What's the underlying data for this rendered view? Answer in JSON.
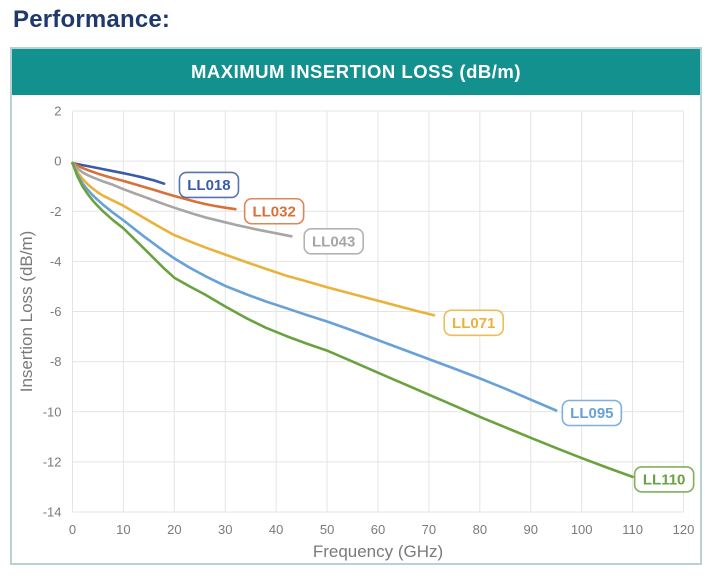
{
  "page": {
    "title": "Performance:"
  },
  "colors": {
    "page_title": "#1e3a6d",
    "banner_bg": "#12918f",
    "banner_text": "#ffffff",
    "card_border": "#b7d2d2",
    "grid": "#e4e4e4",
    "tick_text": "#7a7a7a",
    "axis_title_text": "#7a7a7a",
    "label_box_fill": "#ffffff"
  },
  "chart_data": {
    "type": "line",
    "title": "MAXIMUM INSERTION LOSS (dB/m)",
    "xlabel": "Frequency (GHz)",
    "ylabel": "Insertion Loss (dB/m)",
    "xlim": [
      0,
      120
    ],
    "ylim": [
      -14,
      2
    ],
    "xticks": [
      0,
      10,
      20,
      30,
      40,
      50,
      60,
      70,
      80,
      90,
      100,
      110,
      120
    ],
    "yticks": [
      2,
      0,
      -2,
      -4,
      -6,
      -8,
      -10,
      -12,
      -14
    ],
    "grid": true,
    "legend": "inline-labels",
    "series": [
      {
        "name": "LL018",
        "color": "#3a5ba9",
        "label_pos": [
          26.8,
          -0.95
        ],
        "points": [
          [
            0,
            -0.08
          ],
          [
            1,
            -0.12
          ],
          [
            2,
            -0.16
          ],
          [
            3,
            -0.2
          ],
          [
            4,
            -0.24
          ],
          [
            5,
            -0.28
          ],
          [
            6,
            -0.32
          ],
          [
            8,
            -0.4
          ],
          [
            10,
            -0.48
          ],
          [
            12,
            -0.57
          ],
          [
            14,
            -0.66
          ],
          [
            16,
            -0.77
          ],
          [
            18,
            -0.9
          ]
        ]
      },
      {
        "name": "LL032",
        "color": "#d9703a",
        "label_pos": [
          39.6,
          -2.0
        ],
        "points": [
          [
            0,
            -0.08
          ],
          [
            1,
            -0.18
          ],
          [
            2,
            -0.28
          ],
          [
            3,
            -0.36
          ],
          [
            4,
            -0.43
          ],
          [
            5,
            -0.5
          ],
          [
            6,
            -0.56
          ],
          [
            8,
            -0.68
          ],
          [
            10,
            -0.79
          ],
          [
            12,
            -0.91
          ],
          [
            14,
            -1.03
          ],
          [
            16,
            -1.15
          ],
          [
            18,
            -1.27
          ],
          [
            20,
            -1.39
          ],
          [
            22,
            -1.5
          ],
          [
            24,
            -1.61
          ],
          [
            26,
            -1.71
          ],
          [
            28,
            -1.79
          ],
          [
            30,
            -1.86
          ],
          [
            32,
            -1.92
          ]
        ]
      },
      {
        "name": "LL043",
        "color": "#a6a6a6",
        "label_pos": [
          51.3,
          -3.2
        ],
        "points": [
          [
            0,
            -0.08
          ],
          [
            1,
            -0.3
          ],
          [
            2,
            -0.45
          ],
          [
            3,
            -0.56
          ],
          [
            4,
            -0.65
          ],
          [
            5,
            -0.73
          ],
          [
            6,
            -0.81
          ],
          [
            8,
            -0.95
          ],
          [
            10,
            -1.12
          ],
          [
            12,
            -1.27
          ],
          [
            14,
            -1.42
          ],
          [
            16,
            -1.57
          ],
          [
            18,
            -1.72
          ],
          [
            20,
            -1.86
          ],
          [
            22,
            -1.99
          ],
          [
            24,
            -2.12
          ],
          [
            26,
            -2.24
          ],
          [
            28,
            -2.34
          ],
          [
            30,
            -2.44
          ],
          [
            32,
            -2.54
          ],
          [
            34,
            -2.63
          ],
          [
            36,
            -2.72
          ],
          [
            38,
            -2.8
          ],
          [
            40,
            -2.88
          ],
          [
            42,
            -2.96
          ],
          [
            43,
            -3.0
          ]
        ]
      },
      {
        "name": "LL071",
        "color": "#eab23a",
        "label_pos": [
          78.8,
          -6.45
        ],
        "points": [
          [
            0,
            -0.08
          ],
          [
            1,
            -0.45
          ],
          [
            2,
            -0.72
          ],
          [
            3,
            -0.93
          ],
          [
            4,
            -1.1
          ],
          [
            5,
            -1.25
          ],
          [
            6,
            -1.38
          ],
          [
            8,
            -1.58
          ],
          [
            10,
            -1.78
          ],
          [
            12,
            -2.02
          ],
          [
            14,
            -2.26
          ],
          [
            16,
            -2.5
          ],
          [
            18,
            -2.73
          ],
          [
            20,
            -2.95
          ],
          [
            23,
            -3.2
          ],
          [
            26,
            -3.44
          ],
          [
            30,
            -3.73
          ],
          [
            34,
            -4.02
          ],
          [
            38,
            -4.3
          ],
          [
            42,
            -4.57
          ],
          [
            46,
            -4.8
          ],
          [
            50,
            -5.03
          ],
          [
            55,
            -5.3
          ],
          [
            60,
            -5.57
          ],
          [
            65,
            -5.84
          ],
          [
            68,
            -6.0
          ],
          [
            71,
            -6.15
          ]
        ]
      },
      {
        "name": "LL095",
        "color": "#68a1d8",
        "label_pos": [
          102.0,
          -10.05
        ],
        "points": [
          [
            0,
            -0.08
          ],
          [
            1,
            -0.55
          ],
          [
            2,
            -0.9
          ],
          [
            3,
            -1.15
          ],
          [
            4,
            -1.37
          ],
          [
            5,
            -1.56
          ],
          [
            6,
            -1.74
          ],
          [
            8,
            -2.06
          ],
          [
            10,
            -2.36
          ],
          [
            12,
            -2.68
          ],
          [
            14,
            -3.0
          ],
          [
            16,
            -3.3
          ],
          [
            18,
            -3.6
          ],
          [
            20,
            -3.88
          ],
          [
            23,
            -4.25
          ],
          [
            26,
            -4.58
          ],
          [
            30,
            -4.98
          ],
          [
            34,
            -5.3
          ],
          [
            38,
            -5.6
          ],
          [
            42,
            -5.87
          ],
          [
            46,
            -6.14
          ],
          [
            50,
            -6.4
          ],
          [
            55,
            -6.76
          ],
          [
            60,
            -7.14
          ],
          [
            65,
            -7.52
          ],
          [
            70,
            -7.9
          ],
          [
            75,
            -8.28
          ],
          [
            80,
            -8.67
          ],
          [
            85,
            -9.08
          ],
          [
            90,
            -9.52
          ],
          [
            95,
            -9.95
          ]
        ]
      },
      {
        "name": "LL110",
        "color": "#69a23f",
        "label_pos": [
          116.2,
          -12.7
        ],
        "points": [
          [
            0,
            -0.08
          ],
          [
            1,
            -0.62
          ],
          [
            2,
            -1.02
          ],
          [
            3,
            -1.32
          ],
          [
            4,
            -1.58
          ],
          [
            5,
            -1.8
          ],
          [
            6,
            -2.0
          ],
          [
            8,
            -2.36
          ],
          [
            10,
            -2.68
          ],
          [
            12,
            -3.08
          ],
          [
            14,
            -3.48
          ],
          [
            16,
            -3.88
          ],
          [
            18,
            -4.28
          ],
          [
            20,
            -4.65
          ],
          [
            23,
            -5.0
          ],
          [
            26,
            -5.32
          ],
          [
            30,
            -5.8
          ],
          [
            34,
            -6.25
          ],
          [
            38,
            -6.65
          ],
          [
            42,
            -6.98
          ],
          [
            46,
            -7.28
          ],
          [
            50,
            -7.56
          ],
          [
            55,
            -8.0
          ],
          [
            60,
            -8.44
          ],
          [
            65,
            -8.88
          ],
          [
            70,
            -9.32
          ],
          [
            75,
            -9.76
          ],
          [
            80,
            -10.2
          ],
          [
            85,
            -10.62
          ],
          [
            90,
            -11.04
          ],
          [
            95,
            -11.45
          ],
          [
            100,
            -11.85
          ],
          [
            105,
            -12.23
          ],
          [
            110,
            -12.6
          ]
        ]
      }
    ]
  }
}
